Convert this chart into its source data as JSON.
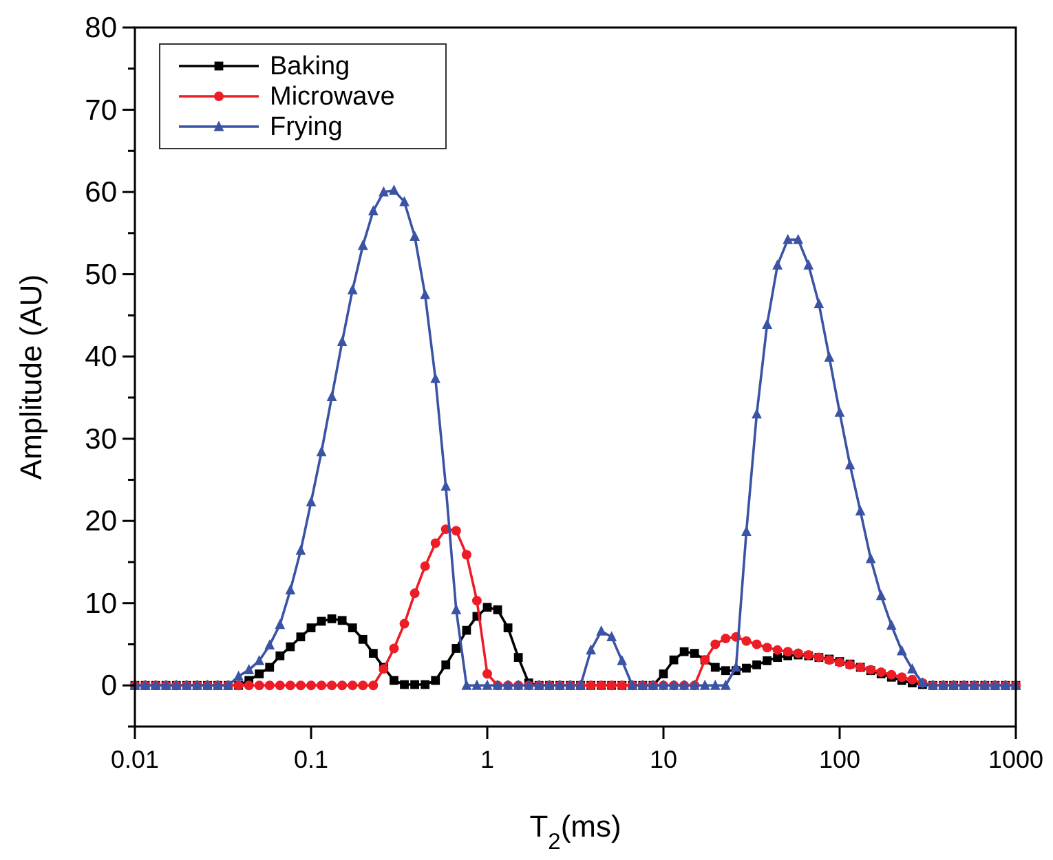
{
  "chart_data": {
    "type": "line",
    "xlabel": "T$_{2}$(ms)",
    "ylabel": "Amplitude (AU)",
    "log": "x",
    "xlim": [
      0.01,
      1000
    ],
    "xticks": [
      0.01,
      0.1,
      1,
      10,
      100,
      1000
    ],
    "ylim": [
      -5,
      80
    ],
    "yticks": [
      {
        "value": -5,
        "label": null
      },
      0,
      {
        "value": 5,
        "label": null
      },
      10,
      {
        "value": 15,
        "label": null
      },
      20,
      {
        "value": 25,
        "label": null
      },
      30,
      {
        "value": 35,
        "label": null
      },
      40,
      {
        "value": 45,
        "label": null
      },
      50,
      {
        "value": 55,
        "label": null
      },
      60,
      {
        "value": 65,
        "label": null
      },
      70,
      {
        "value": 75,
        "label": null
      },
      80
    ],
    "grid": false,
    "legend": "top left",
    "line_style": "solid",
    "x": [
      0.01,
      0.01145,
      0.01311,
      0.01501,
      0.01719,
      0.01968,
      0.02254,
      0.02581,
      0.02955,
      0.03384,
      0.03875,
      0.04437,
      0.0508,
      0.05817,
      0.06661,
      0.07627,
      0.08733,
      0.1,
      0.1145,
      0.1311,
      0.1501,
      0.1719,
      0.1968,
      0.2254,
      0.2581,
      0.2955,
      0.3384,
      0.3875,
      0.4437,
      0.508,
      0.5817,
      0.6661,
      0.7627,
      0.8733,
      1,
      1.145,
      1.311,
      1.501,
      1.719,
      1.968,
      2.254,
      2.581,
      2.955,
      3.384,
      3.875,
      4.437,
      5.08,
      5.817,
      6.661,
      7.627,
      8.733,
      10,
      11.45,
      13.11,
      15.01,
      17.19,
      19.68,
      22.54,
      25.81,
      29.55,
      33.84,
      38.75,
      44.37,
      50.8,
      58.17,
      66.61,
      76.27,
      87.33,
      100,
      114.5,
      131.1,
      150.1,
      171.9,
      196.8,
      225.4,
      258.1,
      295.5,
      338.4,
      387.5,
      443.7,
      508,
      581.7,
      666.1,
      762.7,
      873.3,
      1000
    ],
    "series": [
      {
        "name": "Baking",
        "color": "#000000",
        "marker": "square",
        "values": [
          0,
          0,
          0,
          0,
          0,
          0,
          0,
          0,
          0,
          0,
          0,
          0.6,
          1.4,
          2.2,
          3.6,
          4.7,
          5.9,
          7.0,
          7.8,
          8.1,
          7.9,
          7.0,
          5.6,
          3.9,
          2.2,
          0.6,
          0.1,
          0.1,
          0.1,
          0.6,
          2.5,
          4.5,
          6.7,
          8.4,
          9.5,
          9.2,
          7.0,
          3.4,
          0.3,
          0,
          0,
          0,
          0,
          0,
          0,
          0,
          0,
          0,
          0,
          0,
          0,
          1.4,
          3.1,
          4.1,
          3.9,
          3.1,
          2.2,
          1.8,
          1.8,
          2.1,
          2.5,
          3.0,
          3.4,
          3.6,
          3.7,
          3.6,
          3.4,
          3.2,
          2.9,
          2.6,
          2.2,
          1.8,
          1.4,
          1.0,
          0.6,
          0.3,
          0.1,
          0,
          0,
          0,
          0,
          0,
          0,
          0,
          0,
          0
        ]
      },
      {
        "name": "Microwave",
        "color": "#ee1c25",
        "marker": "circle",
        "values": [
          0,
          0,
          0,
          0,
          0,
          0,
          0,
          0,
          0,
          0,
          0,
          0,
          0,
          0,
          0,
          0,
          0,
          0,
          0,
          0,
          0,
          0,
          0,
          0,
          2.0,
          4.5,
          7.5,
          11.2,
          14.5,
          17.3,
          19.0,
          18.8,
          15.9,
          10.3,
          1.4,
          0,
          0,
          0,
          0,
          0,
          0,
          0,
          0,
          0,
          0,
          0,
          0,
          0,
          0,
          0,
          0,
          0,
          0,
          0,
          0,
          3.1,
          5.0,
          5.7,
          5.9,
          5.4,
          5.0,
          4.6,
          4.3,
          4.1,
          3.9,
          3.7,
          3.4,
          3.1,
          2.8,
          2.5,
          2.2,
          1.9,
          1.6,
          1.3,
          1.0,
          0.7,
          0.3,
          0,
          0,
          0,
          0,
          0,
          0,
          0,
          0,
          0
        ]
      },
      {
        "name": "Frying",
        "color": "#3a53a4",
        "marker": "triangle",
        "values": [
          0,
          0,
          0,
          0,
          0,
          0,
          0,
          0,
          0,
          0,
          1.1,
          1.9,
          3.0,
          4.9,
          7.4,
          11.6,
          16.4,
          22.3,
          28.4,
          35.1,
          41.8,
          48.1,
          53.5,
          57.7,
          60.0,
          60.2,
          58.8,
          54.6,
          47.5,
          37.3,
          24.2,
          9.2,
          0,
          0,
          0,
          0,
          0,
          0,
          0,
          0,
          0,
          0,
          0,
          0,
          4.3,
          6.6,
          5.9,
          3.0,
          0,
          0,
          0,
          0,
          0,
          0,
          0,
          0,
          0,
          0,
          2.2,
          18.7,
          33.0,
          43.9,
          51.1,
          54.2,
          54.2,
          51.1,
          46.4,
          39.9,
          33.2,
          26.8,
          21.2,
          15.4,
          10.9,
          7.3,
          4.2,
          2.0,
          0.3,
          0,
          0,
          0,
          0,
          0,
          0,
          0,
          0,
          0
        ]
      }
    ]
  }
}
